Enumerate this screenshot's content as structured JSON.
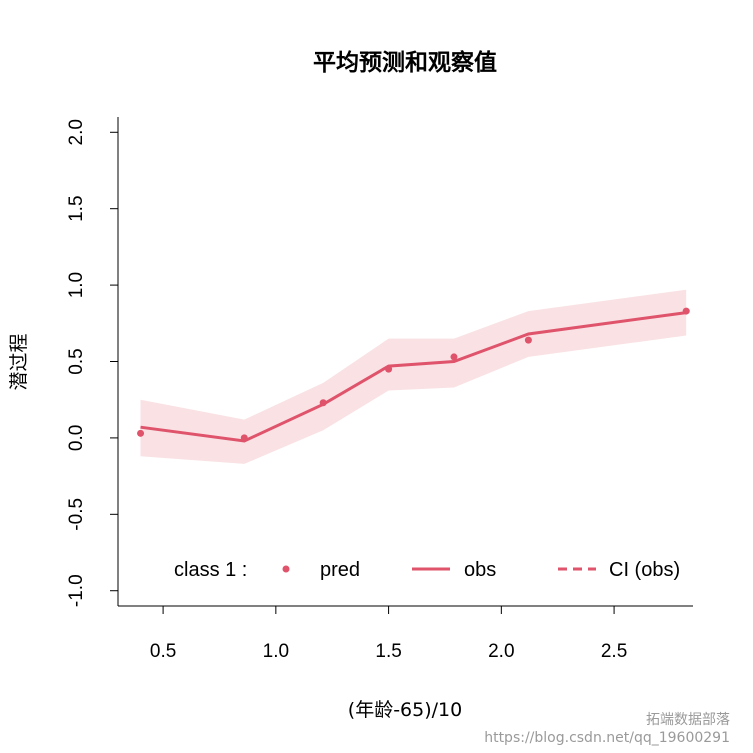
{
  "chart_data": {
    "type": "line",
    "title": "平均预测和观察值",
    "xlabel": "(年龄-65)/10",
    "ylabel": "潜过程",
    "xlim": [
      0.3,
      2.85
    ],
    "ylim": [
      -1.1,
      2.1
    ],
    "x_ticks": [
      0.5,
      1.0,
      1.5,
      2.0,
      2.5
    ],
    "x_tick_labels": [
      "0.5",
      "1.0",
      "1.5",
      "2.0",
      "2.5"
    ],
    "y_ticks": [
      -1.0,
      -0.5,
      0.0,
      0.5,
      1.0,
      1.5,
      2.0
    ],
    "y_tick_labels": [
      "-1.0",
      "-0.5",
      "0.0",
      "0.5",
      "1.0",
      "1.5",
      "2.0"
    ],
    "x": [
      0.4,
      0.86,
      1.21,
      1.5,
      1.79,
      2.12,
      2.82
    ],
    "series": [
      {
        "name": "pred",
        "kind": "points",
        "values": [
          0.03,
          0.0,
          0.23,
          0.45,
          0.53,
          0.64,
          0.83
        ]
      },
      {
        "name": "obs",
        "kind": "line",
        "values": [
          0.07,
          -0.02,
          0.22,
          0.47,
          0.5,
          0.68,
          0.82
        ]
      },
      {
        "name": "CI (obs)",
        "kind": "band",
        "lower": [
          -0.12,
          -0.17,
          0.05,
          0.31,
          0.33,
          0.53,
          0.67
        ],
        "upper": [
          0.25,
          0.12,
          0.36,
          0.65,
          0.65,
          0.83,
          0.97
        ]
      }
    ],
    "legend": {
      "position": "bottom",
      "class_label": "class 1 :",
      "items": [
        "pred",
        "obs",
        "CI (obs)"
      ]
    },
    "colors": {
      "series": "#df536b",
      "band": "#f9e1e4",
      "axis": "#000000"
    }
  },
  "watermark": {
    "brand": "拓端数据部落",
    "url": "https://blog.csdn.net/qq_19600291"
  }
}
